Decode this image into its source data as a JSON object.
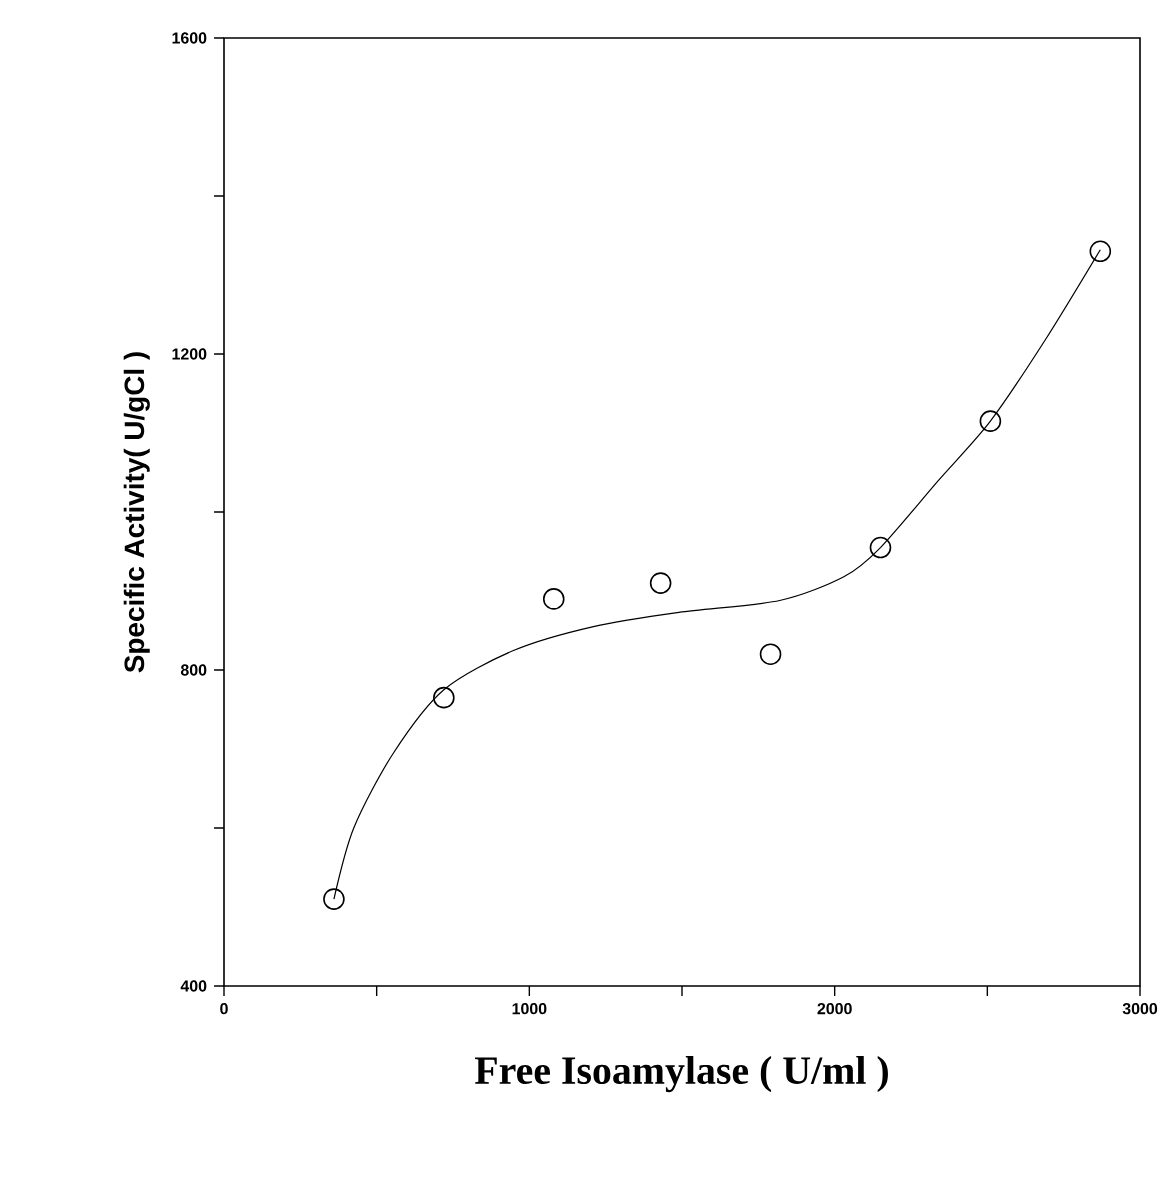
{
  "chart_data": {
    "type": "scatter",
    "xlabel": "Free Isoamylase ( U/ml )",
    "ylabel": "Specific Activity( U/gCl )",
    "xlim": [
      0,
      3000
    ],
    "ylim": [
      400,
      1600
    ],
    "xticks": [
      0,
      {
        "value": 500,
        "label": null
      },
      1000,
      {
        "value": 1500,
        "label": null
      },
      2000,
      {
        "value": 2500,
        "label": null
      },
      3000
    ],
    "yticks": [
      400,
      {
        "value": 600,
        "label": null
      },
      800,
      {
        "value": 1000,
        "label": null
      },
      1200,
      {
        "value": 1400,
        "label": null
      },
      1600
    ],
    "grid": false,
    "series": [
      {
        "color": "#000000",
        "marker": "circle",
        "x": [
          360,
          720,
          1080,
          1430,
          1790,
          2150,
          2510,
          2870
        ],
        "values": [
          510,
          765,
          890,
          910,
          820,
          955,
          1115,
          1330
        ]
      },
      {
        "type": "line",
        "color": "#000000",
        "marker": "none",
        "line_style": "solid",
        "x": [
          360,
          425,
          555,
          720,
          950,
          1210,
          1490,
          1820,
          2030,
          2150,
          2340,
          2510,
          2690,
          2870
        ],
        "values": [
          510,
          600,
          695,
          775,
          825,
          855,
          873,
          888,
          918,
          955,
          1040,
          1115,
          1218,
          1332
        ]
      }
    ]
  }
}
